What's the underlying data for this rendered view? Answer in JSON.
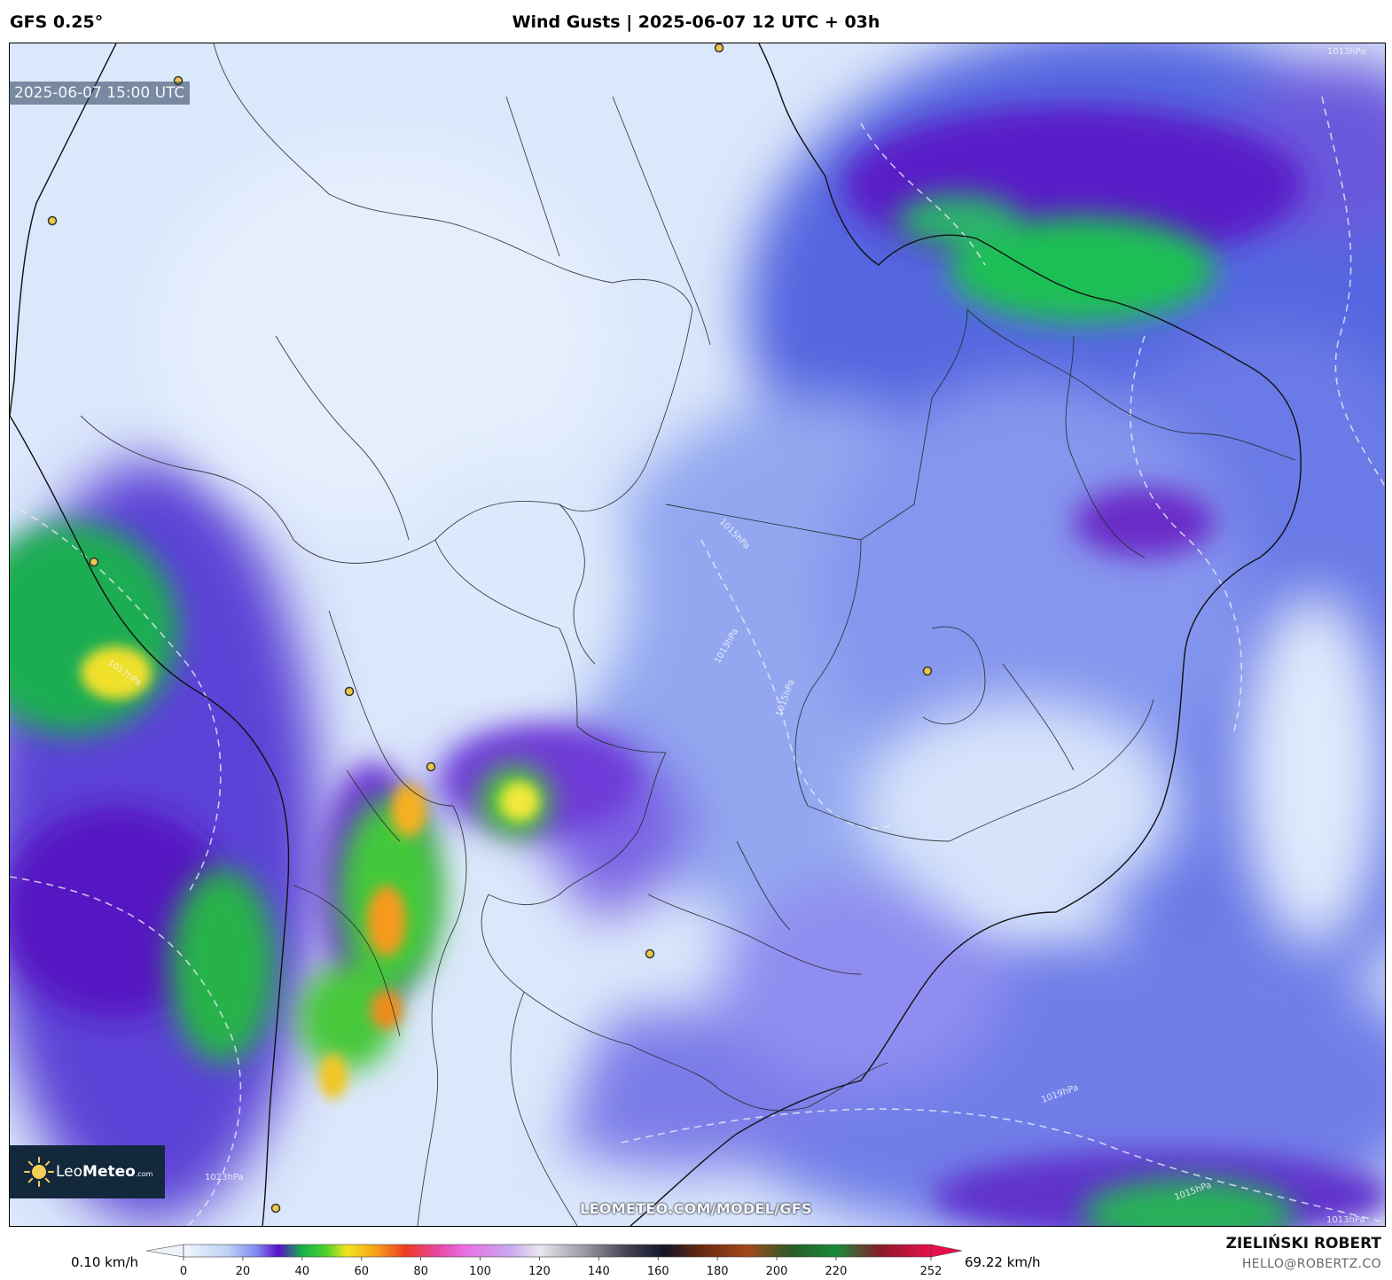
{
  "header": {
    "model": "GFS 0.25°",
    "title": "Wind Gusts | 2025-06-07 12 UTC + 03h"
  },
  "map": {
    "valid_time": "2025-06-07 15:00 UTC",
    "isobar_labels": [
      "1013hPa",
      "1013hPa",
      "1015hPa",
      "1015hPa",
      "1017hPa",
      "1019hPa",
      "1015hPa",
      "1023hPa",
      "1013hPa"
    ],
    "credit_url": "LEOMETEO.COM/MODEL/GFS",
    "logo": {
      "name": "LeoMeteo",
      "part1": "Leo",
      "part2": "Meteo",
      "suffix": ".com",
      "icon": "sun-icon"
    }
  },
  "colorbar": {
    "min_label": "0.10 km/h",
    "max_label": "69.22 km/h",
    "ticks": [
      "0",
      "20",
      "40",
      "60",
      "80",
      "100",
      "120",
      "140",
      "160",
      "180",
      "200",
      "220",
      "252"
    ],
    "tick_values": [
      0,
      20,
      40,
      60,
      80,
      100,
      120,
      140,
      160,
      180,
      200,
      220,
      252
    ],
    "range": [
      0,
      252
    ],
    "stops": [
      {
        "v": 0,
        "c": "#f2f6fd"
      },
      {
        "v": 15,
        "c": "#bcd2f5"
      },
      {
        "v": 25,
        "c": "#7e84ee"
      },
      {
        "v": 32,
        "c": "#5a10c8"
      },
      {
        "v": 40,
        "c": "#17b24a"
      },
      {
        "v": 48,
        "c": "#4cd22b"
      },
      {
        "v": 55,
        "c": "#f2e41e"
      },
      {
        "v": 65,
        "c": "#f7a01b"
      },
      {
        "v": 75,
        "c": "#ec3a22"
      },
      {
        "v": 85,
        "c": "#e6469c"
      },
      {
        "v": 95,
        "c": "#e870e4"
      },
      {
        "v": 110,
        "c": "#c9a8ee"
      },
      {
        "v": 120,
        "c": "#e8e8ee"
      },
      {
        "v": 135,
        "c": "#9a9aa6"
      },
      {
        "v": 150,
        "c": "#404050"
      },
      {
        "v": 162,
        "c": "#15152a"
      },
      {
        "v": 175,
        "c": "#6a2a10"
      },
      {
        "v": 190,
        "c": "#a4481a"
      },
      {
        "v": 205,
        "c": "#2a5b2a"
      },
      {
        "v": 220,
        "c": "#1a8a3a"
      },
      {
        "v": 235,
        "c": "#8a1a2a"
      },
      {
        "v": 252,
        "c": "#e8104a"
      }
    ]
  },
  "author": {
    "name": "ZIELIŃSKI ROBERT",
    "email": "HELLO@ROBERTZ.CO"
  }
}
